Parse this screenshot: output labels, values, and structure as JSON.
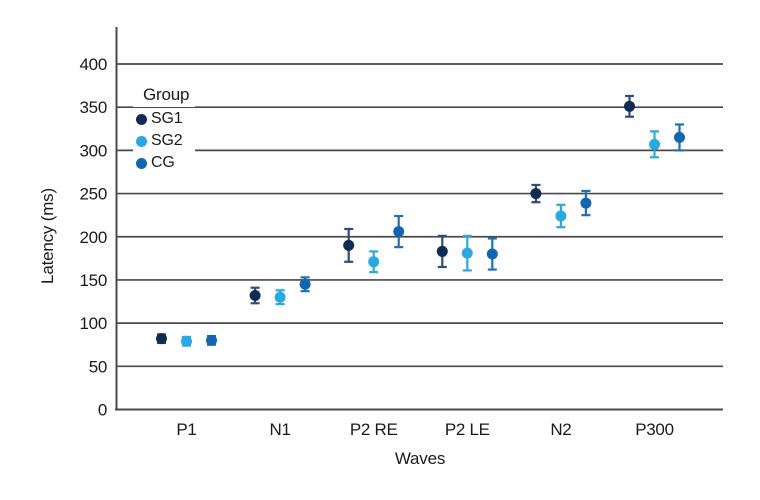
{
  "chart_data": {
    "type": "scatter",
    "title": "",
    "xlabel": "Waves",
    "ylabel": "Latency (ms)",
    "categories": [
      "P1",
      "N1",
      "P2 RE",
      "P2 LE",
      "N2",
      "P300"
    ],
    "y_ticks": [
      0,
      50,
      100,
      150,
      200,
      250,
      300,
      350,
      400
    ],
    "ylim": [
      0,
      440
    ],
    "grid": "horizontal",
    "legend": {
      "title": "Group",
      "position": "upper-left-inside"
    },
    "series": [
      {
        "name": "SG1",
        "color": "#102c51",
        "errorbar_color": "#2b4d7d",
        "values": [
          82,
          132,
          190,
          183,
          250,
          351
        ],
        "errors": [
          5,
          9,
          19,
          18,
          10,
          12
        ]
      },
      {
        "name": "SG2",
        "color": "#29a9e1",
        "errorbar_color": "#29a9e1",
        "values": [
          79,
          130,
          171,
          181,
          224,
          307
        ],
        "errors": [
          5,
          8,
          12,
          20,
          13,
          15
        ]
      },
      {
        "name": "CG",
        "color": "#1266b1",
        "errorbar_color": "#1e70b6",
        "values": [
          80,
          145,
          206,
          180,
          239,
          315
        ],
        "errors": [
          5,
          8,
          18,
          18,
          14,
          15
        ]
      }
    ]
  },
  "colors": {
    "grid": "#4a4a4a",
    "axis": "#4a4a4a",
    "text": "#1a1a1a",
    "background": "#ffffff"
  }
}
